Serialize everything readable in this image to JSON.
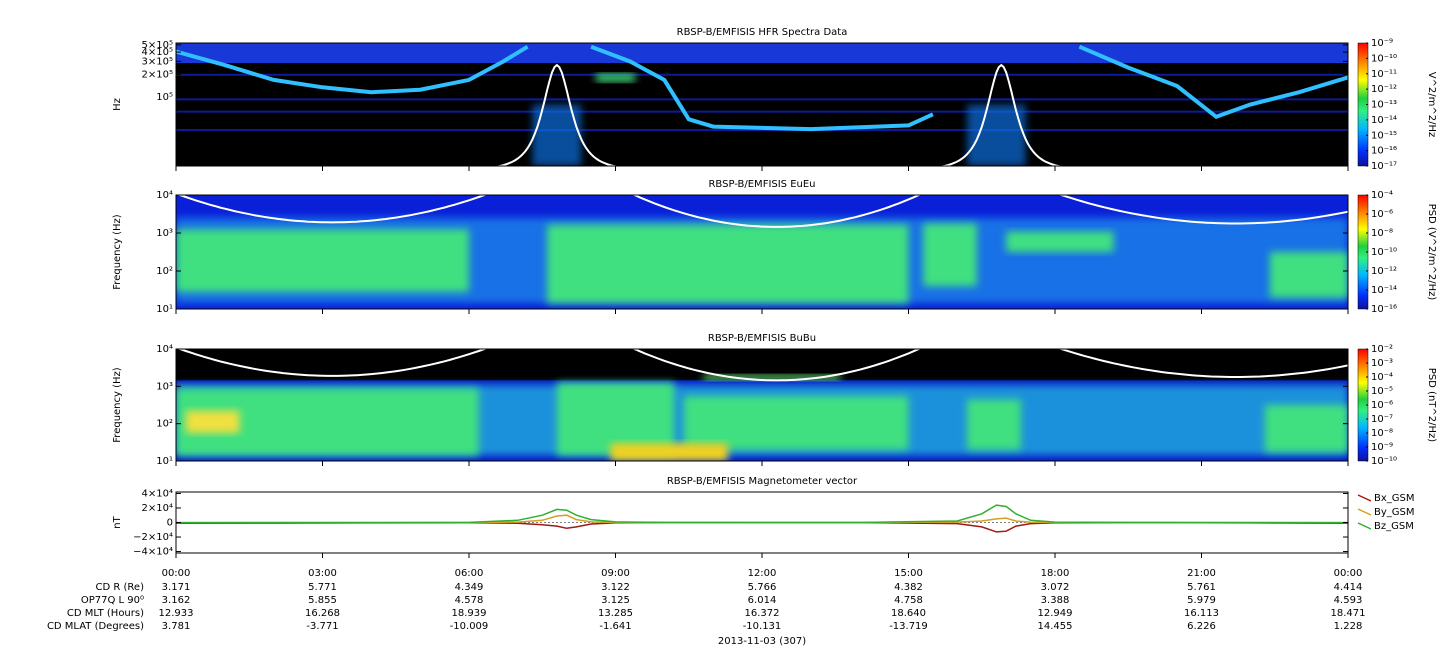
{
  "chart_data": [
    {
      "type": "spectrogram",
      "title": "RBSP-B/EMFISIS  HFR Spectra Data",
      "y_label": "Hz",
      "log_y": true,
      "ylim": [
        11800,
        530000
      ],
      "yticks": [
        {
          "value": 500000,
          "label": "5×10⁵"
        },
        {
          "value": 400000,
          "label": "4×10⁵"
        },
        {
          "value": 300000,
          "label": "3×10⁵"
        },
        {
          "value": 200000,
          "label": "2×10⁵"
        },
        {
          "value": 100000,
          "label": "10⁵"
        }
      ],
      "colorbar": {
        "label": "V^2/m^2/Hz",
        "log": true,
        "lim": [
          1e-17,
          1e-09
        ],
        "ticks": [
          {
            "value": 1e-09,
            "label": "10⁻⁹"
          },
          {
            "value": 1e-10,
            "label": "10⁻¹⁰"
          },
          {
            "value": 1e-11,
            "label": "10⁻¹¹"
          },
          {
            "value": 1e-12,
            "label": "10⁻¹²"
          },
          {
            "value": 1e-13,
            "label": "10⁻¹³"
          },
          {
            "value": 1e-14,
            "label": "10⁻¹⁴"
          },
          {
            "value": 1e-15,
            "label": "10⁻¹⁵"
          },
          {
            "value": 1e-16,
            "label": "10⁻¹⁶"
          },
          {
            "value": 1e-17,
            "label": "10⁻¹⁷"
          }
        ]
      }
    },
    {
      "type": "spectrogram",
      "title": "RBSP-B/EMFISIS  EuEu",
      "y_label": "Frequency (Hz)",
      "log_y": true,
      "ylim": [
        10,
        10000
      ],
      "yticks": [
        {
          "value": 10000,
          "label": "10⁴"
        },
        {
          "value": 1000,
          "label": "10³"
        },
        {
          "value": 100,
          "label": "10²"
        },
        {
          "value": 10,
          "label": "10¹"
        }
      ],
      "colorbar": {
        "label": "PSD (V^2/m^2/Hz)",
        "log": true,
        "lim": [
          1e-16,
          0.0001
        ],
        "ticks": [
          {
            "value": 0.0001,
            "label": "10⁻⁴"
          },
          {
            "value": 1e-06,
            "label": "10⁻⁶"
          },
          {
            "value": 1e-08,
            "label": "10⁻⁸"
          },
          {
            "value": 1e-10,
            "label": "10⁻¹⁰"
          },
          {
            "value": 1e-12,
            "label": "10⁻¹²"
          },
          {
            "value": 1e-14,
            "label": "10⁻¹⁴"
          },
          {
            "value": 1e-16,
            "label": "10⁻¹⁶"
          }
        ]
      }
    },
    {
      "type": "spectrogram",
      "title": "RBSP-B/EMFISIS  BuBu",
      "y_label": "Frequency (Hz)",
      "log_y": true,
      "ylim": [
        10,
        10000
      ],
      "yticks": [
        {
          "value": 10000,
          "label": "10⁴"
        },
        {
          "value": 1000,
          "label": "10³"
        },
        {
          "value": 100,
          "label": "10²"
        },
        {
          "value": 10,
          "label": "10¹"
        }
      ],
      "colorbar": {
        "label": "PSD (nT^2/Hz)",
        "log": true,
        "lim": [
          1e-10,
          0.01
        ],
        "ticks": [
          {
            "value": 0.01,
            "label": "10⁻²"
          },
          {
            "value": 0.001,
            "label": "10⁻³"
          },
          {
            "value": 0.0001,
            "label": "10⁻⁴"
          },
          {
            "value": 1e-05,
            "label": "10⁻⁵"
          },
          {
            "value": 1e-06,
            "label": "10⁻⁶"
          },
          {
            "value": 1e-07,
            "label": "10⁻⁷"
          },
          {
            "value": 1e-08,
            "label": "10⁻⁸"
          },
          {
            "value": 1e-09,
            "label": "10⁻⁹"
          },
          {
            "value": 1e-10,
            "label": "10⁻¹⁰"
          }
        ]
      }
    },
    {
      "type": "line",
      "title": "RBSP-B/EMFISIS  Magnetometer vector",
      "y_label": "nT",
      "log_y": false,
      "ylim": [
        -42000,
        42000
      ],
      "yticks": [
        {
          "value": 40000,
          "label": "4×10⁴"
        },
        {
          "value": 20000,
          "label": "2×10⁴"
        },
        0,
        {
          "value": -20000,
          "label": "−2×10⁴"
        },
        {
          "value": -40000,
          "label": "−4×10⁴"
        }
      ],
      "legend": "right",
      "x": [
        0,
        2,
        4,
        6,
        7,
        7.5,
        7.8,
        8.0,
        8.2,
        8.5,
        9,
        10,
        12,
        14,
        16,
        16.5,
        16.8,
        17.0,
        17.2,
        17.5,
        18,
        20,
        22,
        24
      ],
      "series": [
        {
          "name": "Bx_GSM",
          "color": "#a01818",
          "values": [
            -1000,
            -800,
            -500,
            -300,
            -1000,
            -3000,
            -5000,
            -8000,
            -6000,
            -2000,
            -500,
            -200,
            -100,
            -100,
            -1500,
            -6000,
            -13000,
            -12000,
            -5000,
            -1500,
            -500,
            -200,
            -500,
            -1000
          ]
        },
        {
          "name": "By_GSM",
          "color": "#d4a020",
          "values": [
            0,
            0,
            0,
            0,
            500,
            3000,
            9000,
            10000,
            4000,
            800,
            0,
            0,
            0,
            0,
            500,
            2000,
            5000,
            6000,
            2000,
            300,
            0,
            0,
            0,
            0
          ]
        },
        {
          "name": "Bz_GSM",
          "color": "#30b030",
          "values": [
            -300,
            -200,
            -100,
            200,
            3000,
            10000,
            18000,
            17000,
            10000,
            4000,
            800,
            100,
            0,
            0,
            2000,
            12000,
            24000,
            22000,
            12000,
            3000,
            500,
            0,
            -200,
            -300
          ]
        }
      ]
    }
  ],
  "time_axis": {
    "xlim": [
      0,
      24
    ],
    "xticks": [
      {
        "value": 0,
        "label": "00:00"
      },
      {
        "value": 3,
        "label": "03:00"
      },
      {
        "value": 6,
        "label": "06:00"
      },
      {
        "value": 9,
        "label": "09:00"
      },
      {
        "value": 12,
        "label": "12:00"
      },
      {
        "value": 15,
        "label": "15:00"
      },
      {
        "value": 18,
        "label": "18:00"
      },
      {
        "value": 21,
        "label": "21:00"
      },
      {
        "value": 24,
        "label": "00:00"
      }
    ]
  },
  "ephemeris": {
    "rows": [
      {
        "label": "CD R (Re)",
        "values": [
          "3.171",
          "5.771",
          "4.349",
          "3.122",
          "5.766",
          "4.382",
          "3.072",
          "5.761",
          "4.414"
        ]
      },
      {
        "label": "OP77Q L 90⁰",
        "values": [
          "3.162",
          "5.855",
          "4.578",
          "3.125",
          "6.014",
          "4.758",
          "3.388",
          "5.979",
          "4.593"
        ]
      },
      {
        "label": "CD MLT (Hours)",
        "values": [
          "12.933",
          "16.268",
          "18.939",
          "13.285",
          "16.372",
          "18.640",
          "12.949",
          "16.113",
          "18.471"
        ]
      },
      {
        "label": "CD MLAT (Degrees)",
        "values": [
          "3.781",
          "-3.771",
          "-10.009",
          "-1.641",
          "-10.131",
          "-13.719",
          "14.455",
          "6.226",
          "1.228"
        ]
      }
    ]
  },
  "date": "2013-11-03 (307)"
}
